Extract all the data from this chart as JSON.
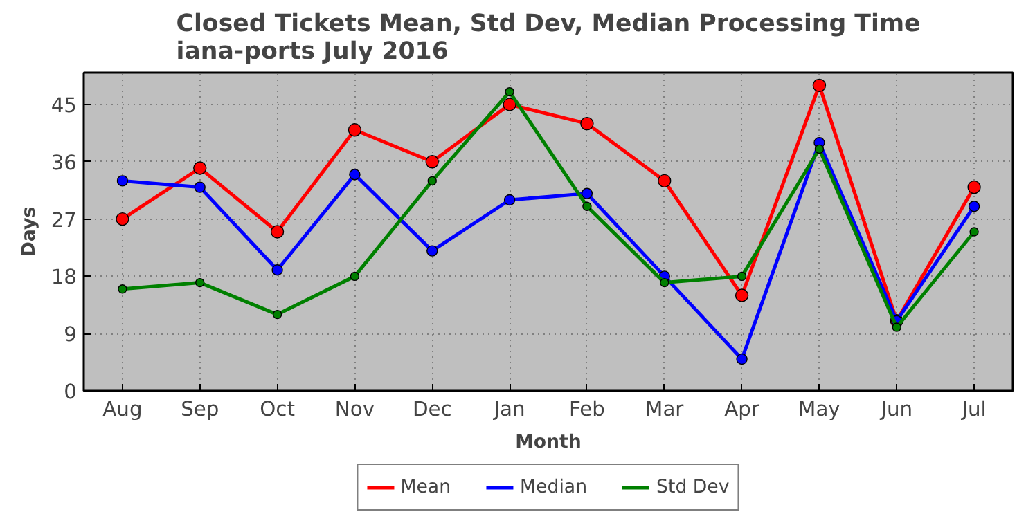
{
  "chart_data": {
    "type": "line",
    "title": "Closed Tickets Mean, Std Dev, Median Processing Time\niana-ports July 2016",
    "xlabel": "Month",
    "ylabel": "Days",
    "categories": [
      "Aug",
      "Sep",
      "Oct",
      "Nov",
      "Dec",
      "Jan",
      "Feb",
      "Mar",
      "Apr",
      "May",
      "Jun",
      "Jul"
    ],
    "series": [
      {
        "name": "Mean",
        "color": "#ff0000",
        "values": [
          27,
          35,
          25,
          41,
          36,
          45,
          42,
          33,
          15,
          48,
          11,
          32
        ]
      },
      {
        "name": "Median",
        "color": "#0000ff",
        "values": [
          33,
          32,
          19,
          34,
          22,
          30,
          31,
          18,
          5,
          39,
          11,
          29
        ]
      },
      {
        "name": "Std Dev",
        "color": "#008000",
        "values": [
          16,
          17,
          12,
          18,
          33,
          47,
          29,
          17,
          18,
          38,
          10,
          25
        ]
      }
    ],
    "ylim": [
      0,
      50
    ],
    "yticks": [
      0,
      9,
      18,
      27,
      36,
      45
    ],
    "grid": true,
    "legend": "bottom",
    "marker": "circle",
    "line_style": "solid"
  }
}
